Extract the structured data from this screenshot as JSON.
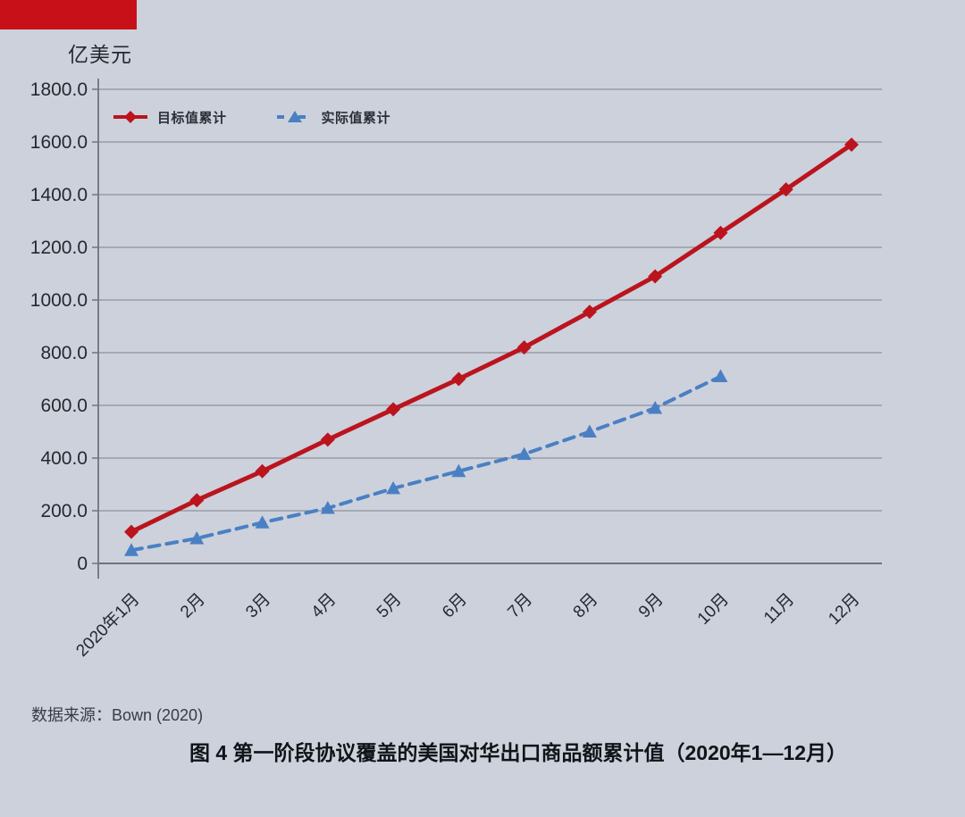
{
  "page": {
    "background_color": "#ccd1dc",
    "accent_bar_color": "#c81018"
  },
  "chart_data": {
    "type": "line",
    "title": "图 4 第一阶段协议覆盖的美国对华出口商品额累计值（2020年1—12月）",
    "unit_label": "亿美元",
    "source": "数据来源：Bown (2020)",
    "categories": [
      "2020年1月",
      "2月",
      "3月",
      "4月",
      "5月",
      "6月",
      "7月",
      "8月",
      "9月",
      "10月",
      "11月",
      "12月"
    ],
    "y_ticks": [
      "1800.0",
      "1600.0",
      "1400.0",
      "1200.0",
      "1000.0",
      "800.0",
      "600.0",
      "400.0",
      "200.0",
      "0"
    ],
    "ylim": [
      0,
      1800
    ],
    "y_tick_interval": 200,
    "grid": "horizontal",
    "legend_position": "top-left-inside",
    "axis_color": "#6e747e",
    "gridline_color": "#8c929c",
    "tick_label_color": "#24292f",
    "series": [
      {
        "name": "目标值累计",
        "color": "#bb141d",
        "marker": "diamond",
        "line_style": "solid",
        "values": [
          120,
          240,
          350,
          470,
          585,
          700,
          820,
          955,
          1090,
          1255,
          1420,
          1590
        ]
      },
      {
        "name": "实际值累计",
        "color": "#4a80c3",
        "marker": "triangle",
        "line_style": "dashed",
        "values": [
          50,
          95,
          155,
          210,
          285,
          350,
          415,
          500,
          590,
          710
        ]
      }
    ]
  }
}
